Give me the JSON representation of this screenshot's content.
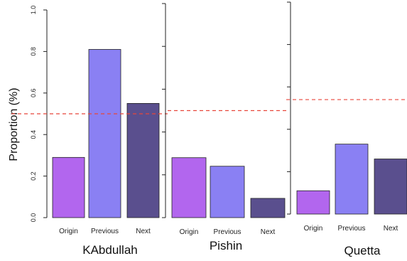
{
  "chart_data": [
    {
      "type": "bar",
      "title": "KAbdullah",
      "ylabel": "Proportion (%)",
      "categories": [
        "Origin",
        "Previous",
        "Next"
      ],
      "values": [
        0.29,
        0.81,
        0.55
      ],
      "ylim": [
        0,
        1
      ],
      "yticks": [
        "0.0",
        "0.2",
        "0.4",
        "0.6",
        "0.8",
        "1.0"
      ],
      "reference_line": 0.5,
      "bar_colors": [
        "#b266ee",
        "#8a80f3",
        "#5a4f8e"
      ],
      "reference_color": "#e8463a"
    },
    {
      "type": "bar",
      "title": "Pishin",
      "categories": [
        "Origin",
        "Previous",
        "Next"
      ],
      "values": [
        0.28,
        0.24,
        0.09
      ],
      "ylim": [
        0,
        1
      ],
      "reference_line": 0.5,
      "bar_colors": [
        "#b266ee",
        "#8a80f3",
        "#5a4f8e"
      ],
      "reference_color": "#e8463a"
    },
    {
      "type": "bar",
      "title": "Quetta",
      "categories": [
        "Origin",
        "Previous",
        "Next"
      ],
      "values": [
        0.11,
        0.33,
        0.26
      ],
      "ylim": [
        0,
        1
      ],
      "reference_line": 0.54,
      "bar_colors": [
        "#b266ee",
        "#8a80f3",
        "#5a4f8e"
      ],
      "reference_color": "#e8463a"
    }
  ]
}
